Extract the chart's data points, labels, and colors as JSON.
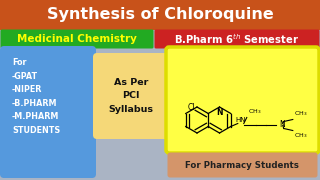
{
  "title": "Synthesis of Chloroquine",
  "title_bg": "#c8521a",
  "title_color": "#ffffff",
  "bg_color": "#aab4c4",
  "med_chem_text": "Medicinal Chemistry",
  "med_chem_bg": "#22aa22",
  "med_chem_color": "#ffff00",
  "bpharm_bg": "#cc2222",
  "bpharm_color": "#ffffff",
  "list_text": "For\n-GPAT\n-NIPER\n-B.PHARM\n-M.PHARM\nSTUDENTS",
  "list_bg": "#5599dd",
  "list_color": "#ffffff",
  "syllabus_text": "As Per\nPCI\nSyllabus",
  "syllabus_bg": "#f5d878",
  "syllabus_color": "#111111",
  "chem_bg": "#ffff44",
  "chem_border": "#dddd00",
  "pharmacy_text": "For Pharmacy Students",
  "pharmacy_bg": "#d4956a",
  "pharmacy_color": "#222222"
}
